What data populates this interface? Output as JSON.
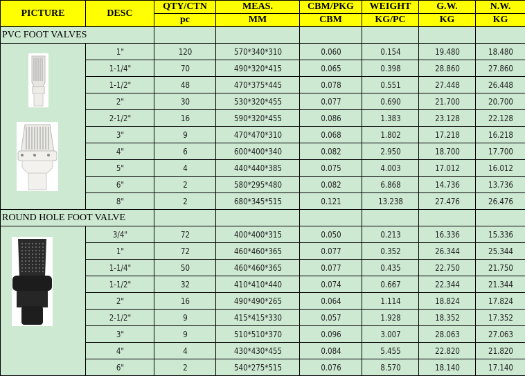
{
  "header": {
    "row1": [
      "PICTURE",
      "DESC",
      "QTY/CTN",
      "MEAS.",
      "CBM/PKG",
      "WEIGHT",
      "G.W.",
      "N.W."
    ],
    "row2": [
      "pc",
      "MM",
      "CBM",
      "KG/PC",
      "KG",
      "KG"
    ]
  },
  "colors": {
    "header_bg": "#ffff00",
    "cell_bg": "#cde9d2",
    "border": "#000000"
  },
  "sections": [
    {
      "title": "PVC FOOT VALVES",
      "pictures": [
        "white-pvc-foot-valve-small",
        "white-pvc-foot-valve-large"
      ],
      "rows": [
        [
          "1\"",
          "120",
          "570*340*310",
          "0.060",
          "0.154",
          "19.480",
          "18.480"
        ],
        [
          "1-1/4\"",
          "70",
          "490*320*415",
          "0.065",
          "0.398",
          "28.860",
          "27.860"
        ],
        [
          "1-1/2\"",
          "48",
          "470*375*445",
          "0.078",
          "0.551",
          "27.448",
          "26.448"
        ],
        [
          "2\"",
          "30",
          "530*320*455",
          "0.077",
          "0.690",
          "21.700",
          "20.700"
        ],
        [
          "2-1/2\"",
          "16",
          "590*320*455",
          "0.086",
          "1.383",
          "23.128",
          "22.128"
        ],
        [
          "3\"",
          "9",
          "470*470*310",
          "0.068",
          "1.802",
          "17.218",
          "16.218"
        ],
        [
          "4\"",
          "6",
          "600*400*340",
          "0.082",
          "2.950",
          "18.700",
          "17.700"
        ],
        [
          "5\"",
          "4",
          "440*440*385",
          "0.075",
          "4.003",
          "17.012",
          "16.012"
        ],
        [
          "6\"",
          "2",
          "580*295*480",
          "0.082",
          "6.868",
          "14.736",
          "13.736"
        ],
        [
          "8\"",
          "2",
          "680*345*515",
          "0.121",
          "13.238",
          "27.476",
          "26.476"
        ]
      ]
    },
    {
      "title": "ROUND HOLE FOOT VALVE",
      "pictures": [
        "black-round-hole-foot-valve"
      ],
      "rows": [
        [
          "3/4\"",
          "72",
          "400*400*315",
          "0.050",
          "0.213",
          "16.336",
          "15.336"
        ],
        [
          "1\"",
          "72",
          "460*460*365",
          "0.077",
          "0.352",
          "26.344",
          "25.344"
        ],
        [
          "1-1/4\"",
          "50",
          "460*460*365",
          "0.077",
          "0.435",
          "22.750",
          "21.750"
        ],
        [
          "1-1/2\"",
          "32",
          "410*410*440",
          "0.074",
          "0.667",
          "22.344",
          "21.344"
        ],
        [
          "2\"",
          "16",
          "490*490*265",
          "0.064",
          "1.114",
          "18.824",
          "17.824"
        ],
        [
          "2-1/2\"",
          "9",
          "415*415*330",
          "0.057",
          "1.928",
          "18.352",
          "17.352"
        ],
        [
          "3\"",
          "9",
          "510*510*370",
          "0.096",
          "3.007",
          "28.063",
          "27.063"
        ],
        [
          "4\"",
          "4",
          "430*430*455",
          "0.084",
          "5.455",
          "22.820",
          "21.820"
        ],
        [
          "6\"",
          "2",
          "540*275*515",
          "0.076",
          "8.570",
          "18.140",
          "17.140"
        ]
      ]
    }
  ]
}
